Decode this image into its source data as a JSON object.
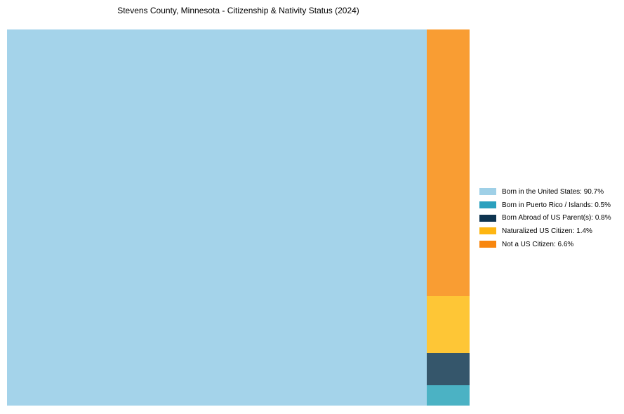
{
  "title": "Stevens County, Minnesota - Citizenship & Nativity Status (2024)",
  "colors": {
    "background": "#ffffff",
    "title_text": "#000000",
    "legend_text": "#000000"
  },
  "chart_data": {
    "type": "treemap",
    "title": "Stevens County, Minnesota - Citizenship & Nativity Status (2024)",
    "total_percent": 100,
    "legend_position": "right-center",
    "layout_hint": "largest item fills left column; remaining items stacked in narrow right column, largest at top",
    "items": [
      {
        "label": "Born in the United States",
        "value": 90.7,
        "legend_label": "Born in the United States: 90.7%",
        "color": "#a4d3ea",
        "legend_color": "#9fd0e7"
      },
      {
        "label": "Born in Puerto Rico / Islands",
        "value": 0.5,
        "legend_label": "Born in Puerto Rico / Islands: 0.5%",
        "color": "#4bb2c4",
        "legend_color": "#2aa0be"
      },
      {
        "label": "Born Abroad of US Parent(s)",
        "value": 0.8,
        "legend_label": "Born Abroad of US Parent(s): 0.8%",
        "color": "#35566b",
        "legend_color": "#0e3450"
      },
      {
        "label": "Naturalized US Citizen",
        "value": 1.4,
        "legend_label": "Naturalized US Citizen: 1.4%",
        "color": "#fec636",
        "legend_color": "#feb612"
      },
      {
        "label": "Not a US Citizen",
        "value": 6.6,
        "legend_label": "Not a US Citizen: 6.6%",
        "color": "#f99d33",
        "legend_color": "#f8860e"
      }
    ]
  }
}
